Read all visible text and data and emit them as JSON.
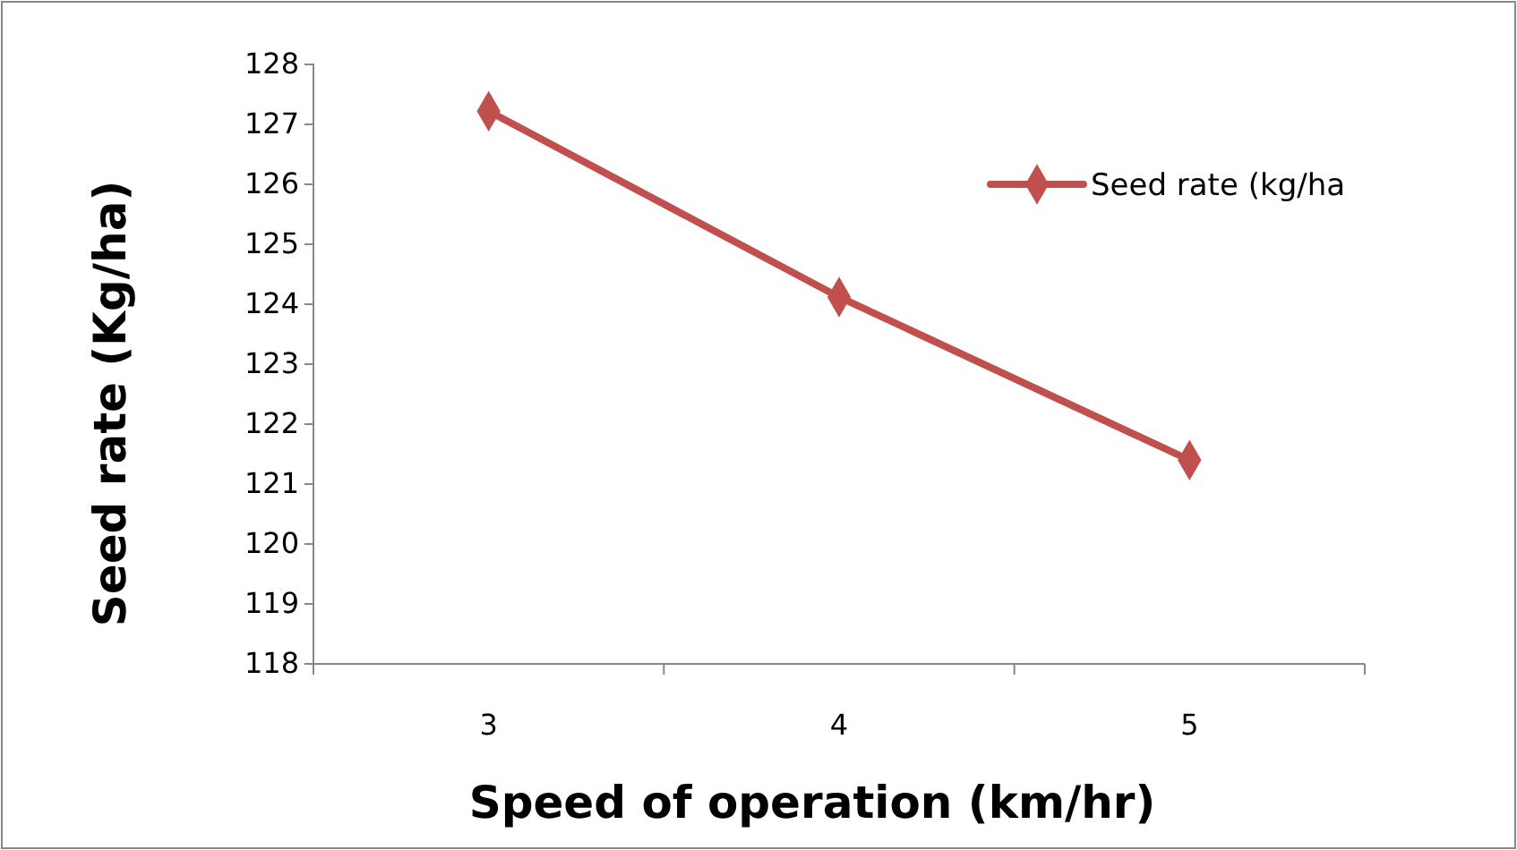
{
  "chart_data": {
    "type": "line",
    "xlabel": "Speed of operation (km/hr)",
    "ylabel": "Seed rate (Kg/ha)",
    "categories": [
      "3",
      "4",
      "5"
    ],
    "series": [
      {
        "name": "Seed rate (kg/ha",
        "color": "#c0504d",
        "values": [
          127.22,
          124.12,
          121.4
        ]
      }
    ],
    "ylim": [
      118,
      128
    ],
    "yticks": [
      118,
      119,
      120,
      121,
      122,
      123,
      124,
      125,
      126,
      127,
      128
    ],
    "legend": "top right",
    "marker": "diamond",
    "grid": false
  }
}
